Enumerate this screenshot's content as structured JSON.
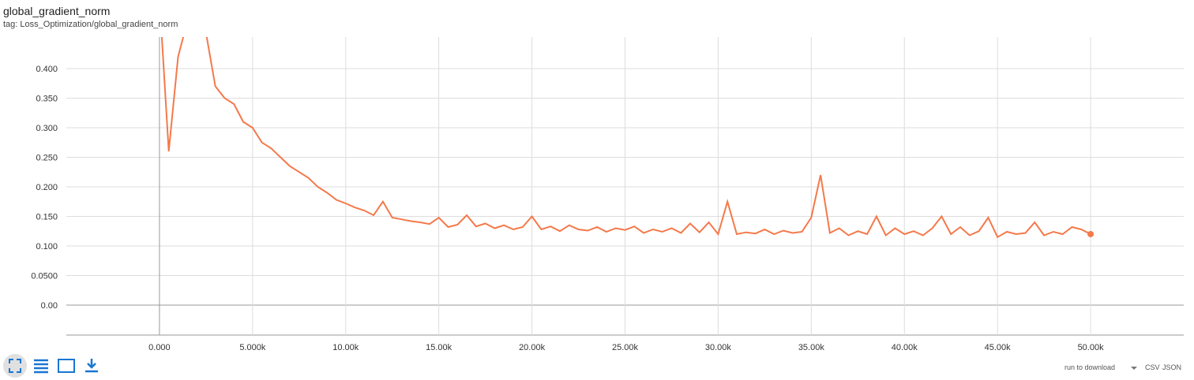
{
  "chart_data": {
    "type": "line",
    "title": "global_gradient_norm",
    "subtitle": "tag: Loss_Optimization/global_gradient_norm",
    "x": [
      0,
      500,
      1000,
      1500,
      2000,
      2500,
      3000,
      3500,
      4000,
      4500,
      5000,
      5500,
      6000,
      6500,
      7000,
      7500,
      8000,
      8500,
      9000,
      9500,
      10000,
      10500,
      11000,
      11500,
      12000,
      12500,
      13000,
      13500,
      14000,
      14500,
      15000,
      15500,
      16000,
      16500,
      17000,
      17500,
      18000,
      18500,
      19000,
      19500,
      20000,
      20500,
      21000,
      21500,
      22000,
      22500,
      23000,
      23500,
      24000,
      24500,
      25000,
      25500,
      26000,
      26500,
      27000,
      27500,
      28000,
      28500,
      29000,
      29500,
      30000,
      30500,
      31000,
      31500,
      32000,
      32500,
      33000,
      33500,
      34000,
      34500,
      35000,
      35500,
      36000,
      36500,
      37000,
      37500,
      38000,
      38500,
      39000,
      39500,
      40000,
      40500,
      41000,
      41500,
      42000,
      42500,
      43000,
      43500,
      44000,
      44500,
      45000,
      45500,
      46000,
      46500,
      47000,
      47500,
      48000,
      48500,
      49000,
      49500,
      50000
    ],
    "series": [
      {
        "color": "#f4794a",
        "values": [
          0.52,
          0.26,
          0.42,
          0.48,
          0.47,
          0.46,
          0.37,
          0.35,
          0.34,
          0.31,
          0.3,
          0.275,
          0.265,
          0.25,
          0.235,
          0.225,
          0.215,
          0.2,
          0.19,
          0.178,
          0.172,
          0.165,
          0.16,
          0.152,
          0.175,
          0.148,
          0.145,
          0.142,
          0.14,
          0.137,
          0.148,
          0.132,
          0.136,
          0.152,
          0.133,
          0.138,
          0.13,
          0.135,
          0.128,
          0.132,
          0.15,
          0.128,
          0.133,
          0.125,
          0.135,
          0.128,
          0.126,
          0.132,
          0.124,
          0.13,
          0.127,
          0.133,
          0.122,
          0.128,
          0.124,
          0.13,
          0.122,
          0.138,
          0.123,
          0.14,
          0.12,
          0.175,
          0.12,
          0.123,
          0.121,
          0.128,
          0.12,
          0.126,
          0.122,
          0.124,
          0.148,
          0.22,
          0.122,
          0.13,
          0.118,
          0.125,
          0.12,
          0.15,
          0.118,
          0.13,
          0.12,
          0.125,
          0.118,
          0.13,
          0.15,
          0.12,
          0.132,
          0.118,
          0.125,
          0.148,
          0.115,
          0.124,
          0.12,
          0.122,
          0.14,
          0.118,
          0.124,
          0.12,
          0.132,
          0.128,
          0.12
        ]
      }
    ],
    "xlim": [
      -5000,
      55000
    ],
    "ylim": [
      -0.0507,
      0.4533
    ],
    "xticks": [
      {
        "value": 0,
        "label": "0.000"
      },
      {
        "value": 5000,
        "label": "5.000k"
      },
      {
        "value": 10000,
        "label": "10.00k"
      },
      {
        "value": 15000,
        "label": "15.00k"
      },
      {
        "value": 20000,
        "label": "20.00k"
      },
      {
        "value": 25000,
        "label": "25.00k"
      },
      {
        "value": 30000,
        "label": "30.00k"
      },
      {
        "value": 35000,
        "label": "35.00k"
      },
      {
        "value": 40000,
        "label": "40.00k"
      },
      {
        "value": 45000,
        "label": "45.00k"
      },
      {
        "value": 50000,
        "label": "50.00k"
      }
    ],
    "yticks": [
      {
        "value": 0,
        "label": "0.00"
      },
      {
        "value": 0.05,
        "label": "0.0500"
      },
      {
        "value": 0.1,
        "label": "0.100"
      },
      {
        "value": 0.15,
        "label": "0.150"
      },
      {
        "value": 0.2,
        "label": "0.200"
      },
      {
        "value": 0.25,
        "label": "0.250"
      },
      {
        "value": 0.3,
        "label": "0.300"
      },
      {
        "value": 0.35,
        "label": "0.350"
      },
      {
        "value": 0.4,
        "label": "0.400"
      }
    ],
    "grid": true
  },
  "footer": {
    "run_to_download": "run to download",
    "csv": "CSV",
    "json": "JSON"
  }
}
